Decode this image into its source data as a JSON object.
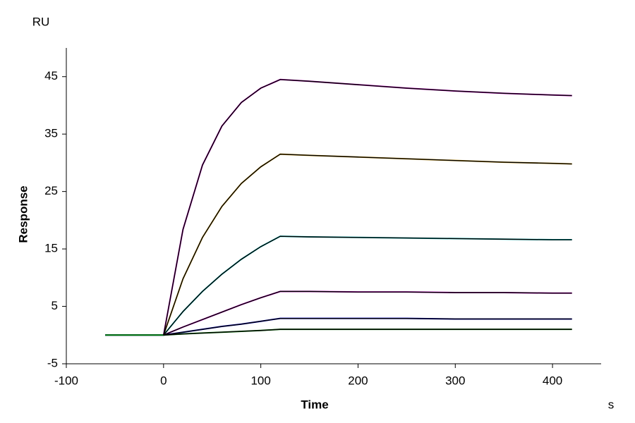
{
  "chart_data": {
    "type": "line",
    "y_unit": "RU",
    "y_label": "Response",
    "x_label": "Time",
    "x_unit": "s",
    "x": [
      -60,
      -30,
      0,
      20,
      40,
      60,
      80,
      100,
      120,
      150,
      200,
      250,
      300,
      350,
      400,
      420
    ],
    "xlim": [
      -100,
      450
    ],
    "xticks": [
      -100,
      0,
      100,
      200,
      300,
      400
    ],
    "ylim": [
      -5,
      50
    ],
    "yticks": [
      -5,
      5,
      15,
      25,
      35,
      45
    ],
    "series": [
      {
        "color": "#cc00cc",
        "values": [
          0,
          0,
          0,
          18.4,
          29.6,
          36.4,
          40.5,
          43.0,
          44.5,
          44.2,
          43.6,
          43.0,
          42.5,
          42.1,
          41.8,
          41.7
        ]
      },
      {
        "color": "#d4a017",
        "values": [
          0,
          0,
          0,
          9.8,
          17.0,
          22.4,
          26.4,
          29.3,
          31.5,
          31.3,
          31.0,
          30.7,
          30.4,
          30.1,
          29.9,
          29.8
        ]
      },
      {
        "color": "#00bcbc",
        "values": [
          0,
          0,
          0,
          4.1,
          7.6,
          10.6,
          13.2,
          15.4,
          17.2,
          17.1,
          17.0,
          16.9,
          16.8,
          16.7,
          16.6,
          16.6
        ]
      },
      {
        "color": "#cc00cc",
        "values": [
          0,
          0,
          0,
          1.4,
          2.7,
          4.0,
          5.3,
          6.5,
          7.6,
          7.6,
          7.5,
          7.5,
          7.4,
          7.4,
          7.3,
          7.3
        ]
      },
      {
        "color": "#0000cc",
        "values": [
          0,
          0,
          0,
          0.5,
          1.0,
          1.5,
          1.9,
          2.4,
          2.9,
          2.9,
          2.9,
          2.9,
          2.8,
          2.8,
          2.8,
          2.8
        ]
      },
      {
        "color": "#008000",
        "values": [
          0,
          0,
          0,
          0.2,
          0.35,
          0.5,
          0.65,
          0.8,
          1.0,
          1.0,
          1.0,
          1.0,
          1.0,
          1.0,
          1.0,
          1.0
        ]
      },
      {
        "color": "#000000",
        "values": [
          null,
          null,
          0,
          18.4,
          29.6,
          36.4,
          40.5,
          43.0,
          44.5,
          44.2,
          43.6,
          43.0,
          42.5,
          42.1,
          41.8,
          41.7
        ]
      },
      {
        "color": "#000000",
        "values": [
          null,
          null,
          0,
          9.8,
          17.0,
          22.4,
          26.4,
          29.3,
          31.5,
          31.3,
          31.0,
          30.7,
          30.4,
          30.1,
          29.9,
          29.8
        ]
      },
      {
        "color": "#000000",
        "values": [
          null,
          null,
          0,
          4.1,
          7.6,
          10.6,
          13.2,
          15.4,
          17.2,
          17.1,
          17.0,
          16.9,
          16.8,
          16.7,
          16.6,
          16.6
        ]
      },
      {
        "color": "#000000",
        "values": [
          null,
          null,
          0,
          1.4,
          2.7,
          4.0,
          5.3,
          6.5,
          7.6,
          7.6,
          7.5,
          7.5,
          7.4,
          7.4,
          7.3,
          7.3
        ]
      },
      {
        "color": "#000000",
        "values": [
          null,
          null,
          0,
          0.5,
          1.0,
          1.5,
          1.9,
          2.4,
          2.9,
          2.9,
          2.9,
          2.9,
          2.8,
          2.8,
          2.8,
          2.8
        ]
      },
      {
        "color": "#000000",
        "values": [
          null,
          null,
          0,
          0.2,
          0.35,
          0.5,
          0.65,
          0.8,
          1.0,
          1.0,
          1.0,
          1.0,
          1.0,
          1.0,
          1.0,
          1.0
        ]
      }
    ]
  }
}
